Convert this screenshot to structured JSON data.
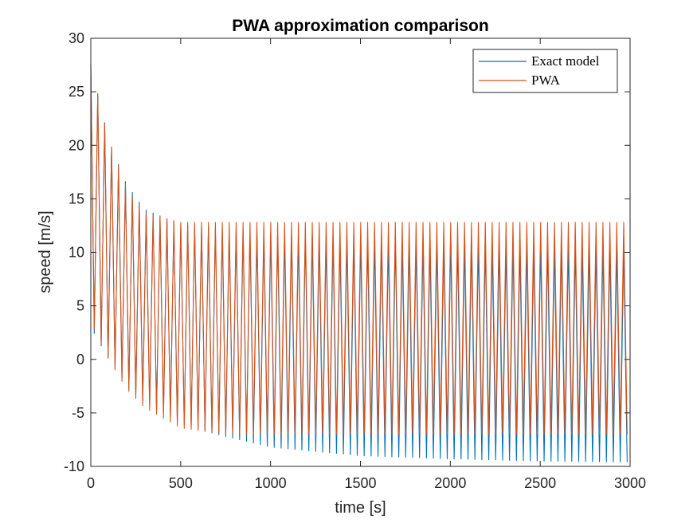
{
  "chart_data": {
    "type": "line",
    "title": "PWA approximation comparison",
    "xlabel": "time [s]",
    "ylabel": "speed [m/s]",
    "xlim": [
      0,
      3000
    ],
    "ylim": [
      -10,
      30
    ],
    "xticks": [
      0,
      500,
      1000,
      1500,
      2000,
      2500,
      3000
    ],
    "yticks": [
      -10,
      -5,
      0,
      5,
      10,
      15,
      20,
      25,
      30
    ],
    "xtick_labels": [
      "0",
      "500",
      "1000",
      "1500",
      "2000",
      "2500",
      "3000"
    ],
    "ytick_labels": [
      "-10",
      "-5",
      "0",
      "5",
      "10",
      "15",
      "20",
      "25",
      "30"
    ],
    "grid": false,
    "legend_position": "top-right",
    "oscillation_period": 38.5,
    "series": [
      {
        "name": "Exact model",
        "color": "#0072BD",
        "x": [
          0,
          100,
          200,
          300,
          500,
          700,
          1000,
          1500,
          2000,
          2500,
          3000
        ],
        "peak": [
          27.5,
          20.5,
          16.3,
          14.0,
          12.6,
          12.2,
          11.7,
          11.2,
          10.9,
          10.7,
          10.5
        ],
        "trough": [
          3.0,
          0.0,
          -2.5,
          -4.0,
          -6.0,
          -7.0,
          -8.2,
          -9.0,
          -9.3,
          -9.5,
          -9.6
        ]
      },
      {
        "name": "PWA",
        "color": "#D95319",
        "x": [
          0,
          100,
          200,
          300,
          500,
          700,
          1000,
          1500,
          2000,
          2500,
          3000
        ],
        "peak": [
          27.5,
          20.5,
          16.0,
          13.7,
          12.8,
          12.8,
          12.8,
          12.8,
          12.8,
          12.8,
          12.8
        ],
        "trough": [
          3.5,
          0.0,
          -2.8,
          -4.5,
          -6.4,
          -6.9,
          -7.0,
          -7.0,
          -7.0,
          -7.0,
          -7.0
        ]
      }
    ]
  }
}
